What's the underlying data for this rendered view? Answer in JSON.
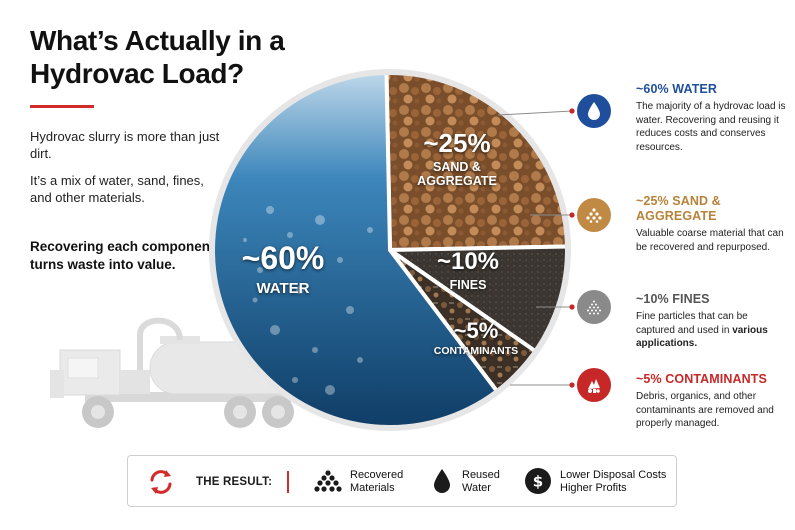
{
  "header": {
    "title": "What’s Actually in a Hydrovac Load?"
  },
  "intro": {
    "p1": "Hydrovac slurry is more than just dirt.",
    "p2": "It’s a mix of water, sand, fines, and other materials.",
    "highlight": "Recovering each component turns waste into value."
  },
  "chart_data": {
    "type": "pie",
    "categories": [
      "WATER",
      "SAND & AGGREGATE",
      "FINES",
      "CONTAMINANTS"
    ],
    "values": [
      60,
      25,
      10,
      5
    ],
    "labels": [
      "~60%",
      "~25%",
      "~10%",
      "~5%"
    ],
    "colors": [
      "#2f73a6",
      "#8a5a32",
      "#3b3631",
      "#4a3a2c"
    ]
  },
  "segments": {
    "water": {
      "pct": "~60%",
      "name": "WATER"
    },
    "sand": {
      "pct": "~25%",
      "name": "SAND & AGGREGATE"
    },
    "fines": {
      "pct": "~10%",
      "name": "FINES"
    },
    "contaminants": {
      "pct": "~5%",
      "name": "CONTAMINANTS"
    }
  },
  "details": {
    "water": {
      "title": "~60% WATER",
      "desc": "The majority of a hydrovac load is water. Recovering and reusing it reduces costs and conserves resources.",
      "icon": "water-drop-icon",
      "color": "#1f4f9c"
    },
    "sand": {
      "title": "~25% SAND & AGGREGATE",
      "desc": "Valuable coarse material that can be recovered and repurposed.",
      "icon": "aggregate-pile-icon",
      "color": "#c08a44"
    },
    "fines": {
      "title": "~10% FINES",
      "desc_plain": "Fine particles that can be captured and used in ",
      "desc_bold": "various applications.",
      "icon": "fine-particles-icon",
      "color": "#8a8a8a"
    },
    "contaminants": {
      "title": "~5% CONTAMINANTS",
      "desc": "Debris, organics, and other contaminants are removed and properly managed.",
      "icon": "debris-icon",
      "color": "#c62828"
    }
  },
  "result": {
    "label": "THE RESULT:",
    "items": [
      {
        "line1": "Recovered",
        "line2": "Materials",
        "icon": "material-pile-icon"
      },
      {
        "line1": "Reused",
        "line2": "Water",
        "icon": "water-drop-icon"
      },
      {
        "line1": "Lower Disposal Costs",
        "line2": "Higher Profits",
        "icon": "dollar-icon"
      }
    ],
    "cycle_icon": "recycle-arrows-icon"
  }
}
